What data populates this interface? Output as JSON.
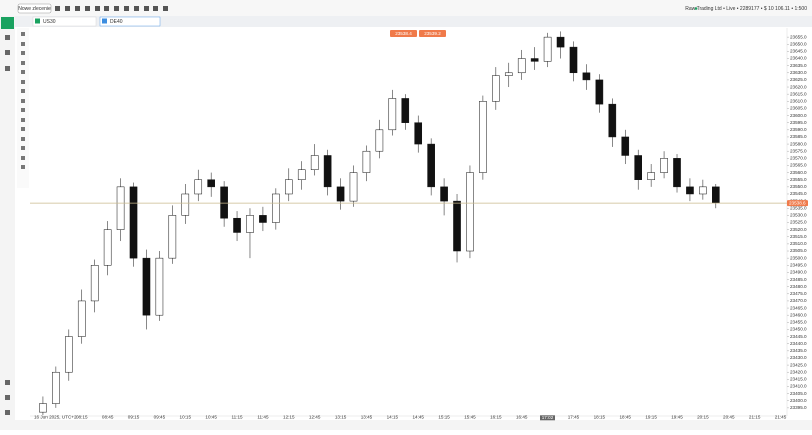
{
  "toolbar": {
    "new_order": "Nowe zlecenie",
    "account": "Raw Trading Ltd • Live • 2289177 • $ 10 106.11 • 1:500"
  },
  "tabs": [
    "US30",
    "DE40"
  ],
  "trade_buttons": [
    "23538.4",
    "23539.2"
  ],
  "chart_data": {
    "type": "candlestick",
    "x_start_label": "16 Jun 2025, UTC+2",
    "crosshair_label": "17:02",
    "up_color": "#ffffff",
    "down_color": "#111111",
    "current_price_color": "#c9b98d",
    "current_price": 23538.6,
    "open": [
      23392,
      23398,
      23420,
      23445,
      23470,
      23495,
      23520,
      23550,
      23500,
      23460,
      23500,
      23530,
      23545,
      23555,
      23550,
      23528,
      23518,
      23530,
      23525,
      23545,
      23555,
      23562,
      23572,
      23550,
      23540,
      23560,
      23575,
      23590,
      23612,
      23595,
      23580,
      23550,
      23540,
      23505,
      23560,
      23610,
      23628,
      23630,
      23640,
      23638,
      23655,
      23648,
      23630,
      23625,
      23608,
      23585,
      23572,
      23555,
      23560,
      23570,
      23550,
      23545,
      23550
    ],
    "high": [
      23403,
      23424,
      23450,
      23478,
      23499,
      23526,
      23556,
      23553,
      23506,
      23505,
      23537,
      23552,
      23562,
      23560,
      23554,
      23533,
      23535,
      23536,
      23549,
      23563,
      23568,
      23580,
      23576,
      23556,
      23565,
      23579,
      23597,
      23618,
      23615,
      23600,
      23584,
      23556,
      23545,
      23565,
      23614,
      23634,
      23637,
      23646,
      23648,
      23658,
      23659,
      23652,
      23636,
      23629,
      23612,
      23590,
      23576,
      23566,
      23575,
      23573,
      23556,
      23555,
      23552
    ],
    "low": [
      23390,
      23395,
      23414,
      23440,
      23462,
      23488,
      23512,
      23494,
      23450,
      23456,
      23496,
      23524,
      23540,
      23543,
      23522,
      23512,
      23500,
      23519,
      23520,
      23540,
      23548,
      23558,
      23544,
      23534,
      23536,
      23554,
      23570,
      23586,
      23590,
      23574,
      23544,
      23530,
      23497,
      23500,
      23555,
      23604,
      23620,
      23625,
      23632,
      23634,
      23640,
      23624,
      23618,
      23602,
      23578,
      23566,
      23548,
      23550,
      23556,
      23546,
      23540,
      23541,
      23535
    ],
    "close": [
      23398,
      23420,
      23445,
      23470,
      23495,
      23520,
      23550,
      23500,
      23460,
      23500,
      23530,
      23545,
      23555,
      23550,
      23528,
      23518,
      23530,
      23525,
      23545,
      23555,
      23562,
      23572,
      23550,
      23540,
      23560,
      23575,
      23590,
      23612,
      23595,
      23580,
      23550,
      23540,
      23505,
      23560,
      23610,
      23628,
      23630,
      23640,
      23638,
      23655,
      23648,
      23630,
      23625,
      23608,
      23585,
      23572,
      23555,
      23560,
      23570,
      23550,
      23545,
      23550,
      23538.6
    ],
    "xlim": [
      -1,
      57.5
    ],
    "xticks": [
      {
        "value": 3,
        "label": "08:15"
      },
      {
        "value": 5,
        "label": "08:45"
      },
      {
        "value": 7,
        "label": "09:15"
      },
      {
        "value": 9,
        "label": "09:45"
      },
      {
        "value": 11,
        "label": "10:15"
      },
      {
        "value": 13,
        "label": "10:45"
      },
      {
        "value": 15,
        "label": "11:15"
      },
      {
        "value": 17,
        "label": "11:45"
      },
      {
        "value": 19,
        "label": "12:15"
      },
      {
        "value": 21,
        "label": "12:45"
      },
      {
        "value": 23,
        "label": "13:15"
      },
      {
        "value": 25,
        "label": "13:45"
      },
      {
        "value": 27,
        "label": "14:15"
      },
      {
        "value": 29,
        "label": "14:45"
      },
      {
        "value": 31,
        "label": "15:15"
      },
      {
        "value": 33,
        "label": "15:45"
      },
      {
        "value": 35,
        "label": "16:15"
      },
      {
        "value": 37,
        "label": "16:45"
      },
      {
        "value": 41,
        "label": "17:45"
      },
      {
        "value": 43,
        "label": "18:15"
      },
      {
        "value": 45,
        "label": "18:45"
      },
      {
        "value": 47,
        "label": "19:15"
      },
      {
        "value": 49,
        "label": "19:45"
      },
      {
        "value": 51,
        "label": "20:15"
      },
      {
        "value": 53,
        "label": "20:45"
      },
      {
        "value": 55,
        "label": "21:15"
      },
      {
        "value": 57,
        "label": "21:45"
      }
    ],
    "ylim": [
      23390,
      23660
    ],
    "yticks": [
      {
        "value": 23395,
        "label": "23395.0"
      },
      {
        "value": 23400,
        "label": "23400.0"
      },
      {
        "value": 23405,
        "label": "23405.0"
      },
      {
        "value": 23410,
        "label": "23410.0"
      },
      {
        "value": 23415,
        "label": "23415.0"
      },
      {
        "value": 23420,
        "label": "23420.0"
      },
      {
        "value": 23425,
        "label": "23425.0"
      },
      {
        "value": 23430,
        "label": "23430.0"
      },
      {
        "value": 23435,
        "label": "23435.0"
      },
      {
        "value": 23440,
        "label": "23440.0"
      },
      {
        "value": 23445,
        "label": "23445.0"
      },
      {
        "value": 23450,
        "label": "23450.0"
      },
      {
        "value": 23455,
        "label": "23455.0"
      },
      {
        "value": 23460,
        "label": "23460.0"
      },
      {
        "value": 23465,
        "label": "23465.0"
      },
      {
        "value": 23470,
        "label": "23470.0"
      },
      {
        "value": 23475,
        "label": "23475.0"
      },
      {
        "value": 23480,
        "label": "23480.0"
      },
      {
        "value": 23485,
        "label": "23485.0"
      },
      {
        "value": 23490,
        "label": "23490.0"
      },
      {
        "value": 23495,
        "label": "23495.0"
      },
      {
        "value": 23500,
        "label": "23500.0"
      },
      {
        "value": 23505,
        "label": "23505.0"
      },
      {
        "value": 23510,
        "label": "23510.0"
      },
      {
        "value": 23515,
        "label": "23515.0"
      },
      {
        "value": 23520,
        "label": "23520.0"
      },
      {
        "value": 23525,
        "label": "23525.0"
      },
      {
        "value": 23530,
        "label": "23530.0"
      },
      {
        "value": 23535,
        "label": "23535.0"
      },
      {
        "value": 23540,
        "label": "23540.0"
      },
      {
        "value": 23545,
        "label": "23545.0"
      },
      {
        "value": 23550,
        "label": "23550.0"
      },
      {
        "value": 23555,
        "label": "23555.0"
      },
      {
        "value": 23560,
        "label": "23560.0"
      },
      {
        "value": 23565,
        "label": "23565.0"
      },
      {
        "value": 23570,
        "label": "23570.0"
      },
      {
        "value": 23575,
        "label": "23575.0"
      },
      {
        "value": 23580,
        "label": "23580.0"
      },
      {
        "value": 23585,
        "label": "23585.0"
      },
      {
        "value": 23590,
        "label": "23590.0"
      },
      {
        "value": 23595,
        "label": "23595.0"
      },
      {
        "value": 23600,
        "label": "23600.0"
      },
      {
        "value": 23605,
        "label": "23605.0"
      },
      {
        "value": 23610,
        "label": "23610.0"
      },
      {
        "value": 23615,
        "label": "23615.0"
      },
      {
        "value": 23620,
        "label": "23620.0"
      },
      {
        "value": 23625,
        "label": "23625.0"
      },
      {
        "value": 23630,
        "label": "23630.0"
      },
      {
        "value": 23635,
        "label": "23635.0"
      },
      {
        "value": 23640,
        "label": "23640.0"
      },
      {
        "value": 23645,
        "label": "23645.0"
      },
      {
        "value": 23650,
        "label": "23650.0"
      },
      {
        "value": 23655,
        "label": "23655.0"
      }
    ],
    "grid": false
  }
}
